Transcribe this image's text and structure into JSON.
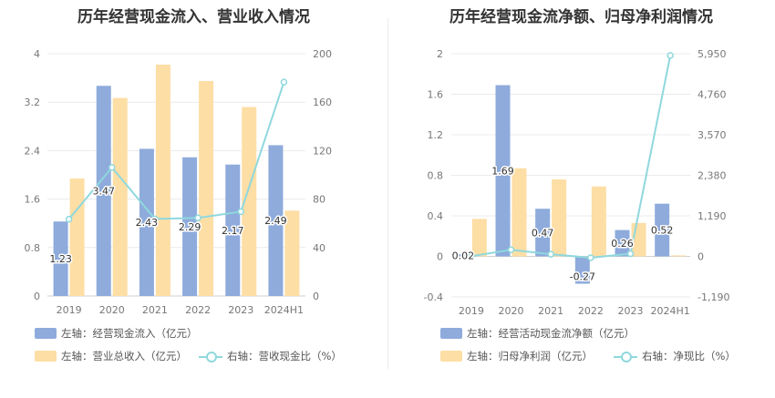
{
  "chart_data": [
    {
      "type": "bar",
      "title": "历年经营现金流入、营业收入情况",
      "categories": [
        "2019",
        "2020",
        "2021",
        "2022",
        "2023",
        "2024H1"
      ],
      "left_axis": {
        "ylim": [
          0,
          4
        ],
        "ticks": [
          "0",
          "0.8",
          "1.6",
          "2.4",
          "3.2",
          "4"
        ]
      },
      "right_axis": {
        "ylim": [
          0,
          200
        ],
        "ticks": [
          "0",
          "40",
          "80",
          "120",
          "160",
          "200"
        ]
      },
      "series": [
        {
          "name": "左轴：经营现金流入（亿元）",
          "type": "bar",
          "axis": "left",
          "color": "#8eabdc",
          "values": [
            1.23,
            3.47,
            2.43,
            2.29,
            2.17,
            2.49
          ],
          "labels": [
            "1.23",
            "3.47",
            "2.43",
            "2.29",
            "2.17",
            "2.49"
          ]
        },
        {
          "name": "左轴：营业总收入（亿元）",
          "type": "bar",
          "axis": "left",
          "color": "#fddea5",
          "values": [
            1.94,
            3.27,
            3.82,
            3.55,
            3.12,
            1.41
          ]
        },
        {
          "name": "右轴：营收现金比（%）",
          "type": "line",
          "axis": "right",
          "color": "#8fd8dd",
          "values": [
            63.4,
            106.1,
            63.6,
            64.5,
            69.6,
            176.6
          ]
        }
      ]
    },
    {
      "type": "bar",
      "title": "历年经营现金流净额、归母净利润情况",
      "categories": [
        "2019",
        "2020",
        "2021",
        "2022",
        "2023",
        "2024H1"
      ],
      "left_axis": {
        "ylim": [
          -0.4,
          2
        ],
        "ticks": [
          "-0.4",
          "0",
          "0.4",
          "0.8",
          "1.2",
          "1.6",
          "2"
        ]
      },
      "right_axis": {
        "ylim": [
          -1190,
          5950
        ],
        "ticks": [
          "-1,190",
          "0",
          "1,190",
          "2,380",
          "3,570",
          "4,760",
          "5,950"
        ]
      },
      "series": [
        {
          "name": "左轴：经营活动现金流净额（亿元）",
          "type": "bar",
          "axis": "left",
          "color": "#8eabdc",
          "values": [
            0.02,
            1.69,
            0.47,
            -0.27,
            0.26,
            0.52
          ],
          "labels": [
            "0.02",
            "1.69",
            "0.47",
            "-0.27",
            "0.26",
            "0.52"
          ]
        },
        {
          "name": "左轴：归母净利润（亿元）",
          "type": "bar",
          "axis": "left",
          "color": "#fddea5",
          "values": [
            0.37,
            0.87,
            0.76,
            0.69,
            0.33,
            0.01
          ]
        },
        {
          "name": "右轴：净现比（%）",
          "type": "line",
          "axis": "right",
          "color": "#8fd8dd",
          "values": [
            5,
            194,
            62,
            -39,
            79,
            5900
          ]
        }
      ]
    }
  ]
}
